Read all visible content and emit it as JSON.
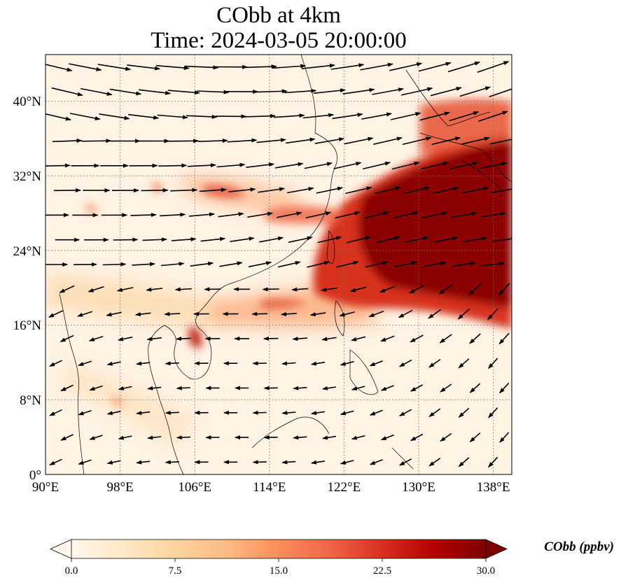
{
  "title": {
    "line1": "CObb at 4km",
    "line2": "Time: 2024-03-05 20:00:00"
  },
  "axes": {
    "x_ticks": [
      "90°E",
      "98°E",
      "106°E",
      "114°E",
      "122°E",
      "130°E",
      "138°E"
    ],
    "y_ticks": [
      "0°",
      "8°N",
      "16°N",
      "24°N",
      "32°N",
      "40°N"
    ],
    "lon_range": [
      90,
      140
    ],
    "lat_range": [
      0,
      45
    ],
    "gridlines": "dotted"
  },
  "colorbar": {
    "label": "CObb (ppbv)",
    "ticks": [
      "0.0",
      "7.5",
      "15.0",
      "22.5",
      "30.0"
    ],
    "range": [
      0,
      30
    ],
    "colormap": "OrRd",
    "colors": [
      "#fff7ec",
      "#fee8c8",
      "#fdd49e",
      "#fdbb84",
      "#fc8d59",
      "#ef6548",
      "#d7301f",
      "#b30000",
      "#7f0000"
    ]
  },
  "field_description": {
    "variable": "CObb",
    "units": "ppbv",
    "level": "4km"
  }
}
